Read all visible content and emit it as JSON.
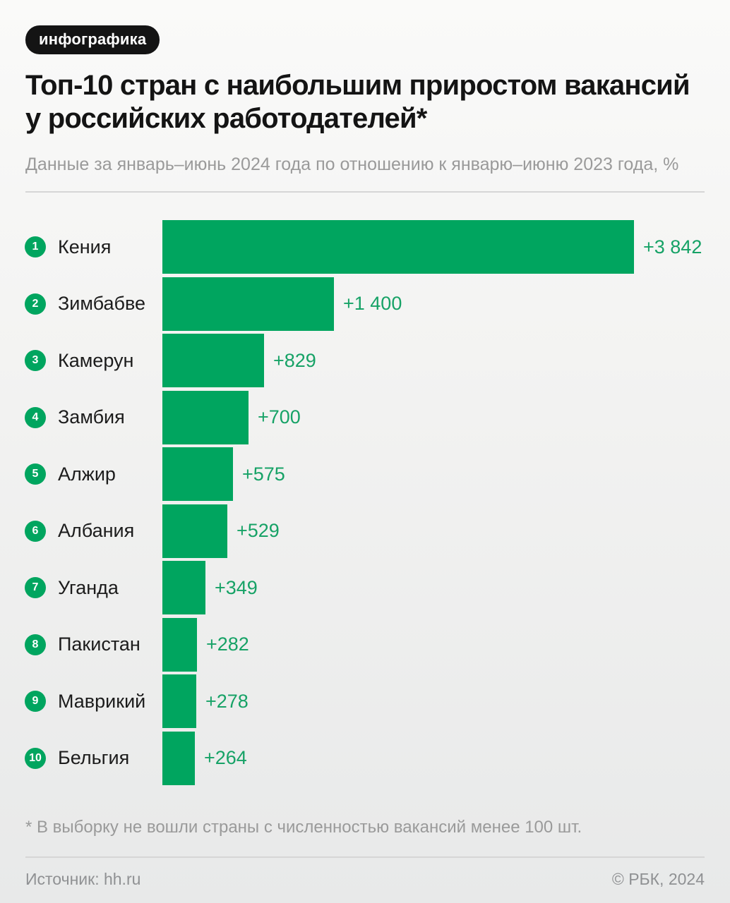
{
  "badge": "инфографика",
  "title": "Топ-10 стран с наибольшим приростом вакансий у российских работодателей*",
  "subtitle": "Данные за январь–июнь 2024 года по отношению к январю–июню 2023 года, %",
  "chart_data": {
    "type": "bar",
    "orientation": "horizontal",
    "categories": [
      "Кения",
      "Зимбабве",
      "Камерун",
      "Замбия",
      "Алжир",
      "Албания",
      "Уганда",
      "Пакистан",
      "Маврикий",
      "Бельгия"
    ],
    "ranks": [
      "1",
      "2",
      "3",
      "4",
      "5",
      "6",
      "7",
      "8",
      "9",
      "10"
    ],
    "values": [
      3842,
      1400,
      829,
      700,
      575,
      529,
      349,
      282,
      278,
      264
    ],
    "value_labels": [
      "+3 842",
      "+1 400",
      "+829",
      "+700",
      "+575",
      "+529",
      "+349",
      "+282",
      "+278",
      "+264"
    ],
    "unit": "%",
    "xlim": [
      0,
      3842
    ],
    "grid": false,
    "legend": false,
    "title": "Топ-10 стран с наибольшим приростом вакансий у российских работодателей*",
    "subtitle": "Данные за январь–июнь 2024 года по отношению к январю–июню 2023 года, %"
  },
  "footnote": "* В выборку не вошли страны с численностью вакансий менее 100 шт.",
  "footer": {
    "source": "Источник: hh.ru",
    "copyright": "© РБК, 2024"
  },
  "colors": {
    "bar": "#00a55f",
    "rank_badge": "#00a55f",
    "value_text": "#16a266",
    "badge_bg": "#141414",
    "title_text": "#141414",
    "muted_text": "#9a9a9a",
    "footer_text": "#8f9193",
    "divider": "#d6d6d6",
    "background_top": "#fafaf9",
    "background_bottom": "#e8e9e9"
  }
}
